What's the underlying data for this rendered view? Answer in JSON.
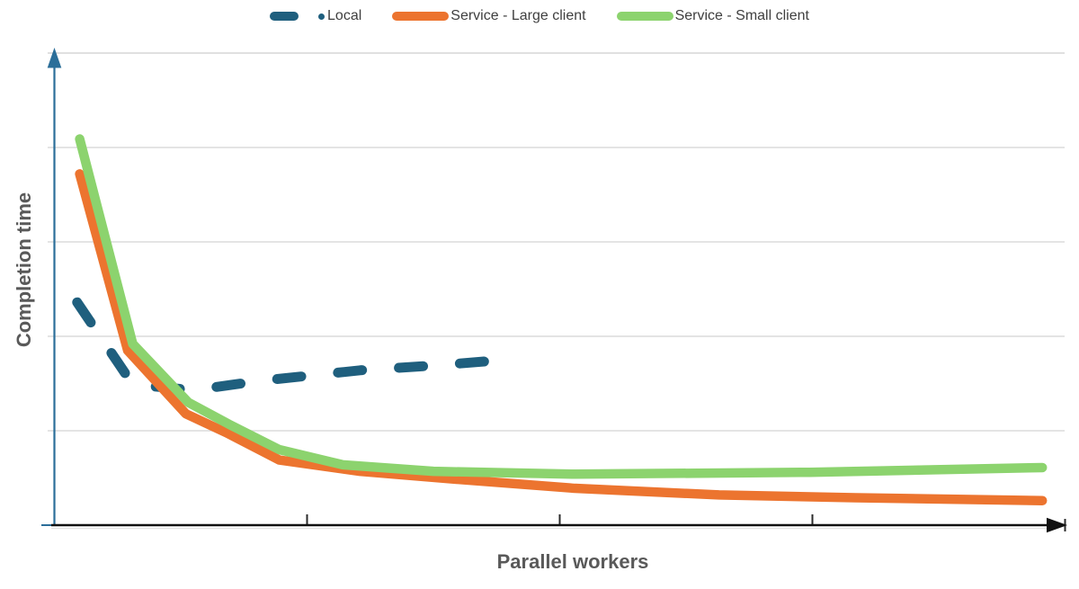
{
  "chart_data": {
    "type": "line",
    "xlabel": "Parallel workers",
    "ylabel": "Completion time",
    "xlim": [
      0,
      4
    ],
    "ylim": [
      0,
      5
    ],
    "x_tick_labels": [],
    "y_tick_labels": [],
    "gridlines": "horizontal",
    "legend_position": "top-center",
    "units": "axes have no numeric labels; values are in gridline units",
    "series": [
      {
        "name": "Local",
        "color": "#1F5F7E",
        "line_style": "dashed",
        "stroke_width": 11,
        "points": [
          [
            0.09,
            2.36
          ],
          [
            0.31,
            1.49
          ],
          [
            0.55,
            1.43
          ],
          [
            0.82,
            1.53
          ],
          [
            1.21,
            1.64
          ],
          [
            1.5,
            1.69
          ],
          [
            1.78,
            1.75
          ]
        ]
      },
      {
        "name": "Service - Large client",
        "color": "#EC742F",
        "line_style": "solid",
        "stroke_width": 10.5,
        "points": [
          [
            0.1,
            3.72
          ],
          [
            0.29,
            1.85
          ],
          [
            0.52,
            1.18
          ],
          [
            0.68,
            0.98
          ],
          [
            0.89,
            0.69
          ],
          [
            1.21,
            0.57
          ],
          [
            1.57,
            0.49
          ],
          [
            2.06,
            0.39
          ],
          [
            2.63,
            0.32
          ],
          [
            3.17,
            0.29
          ],
          [
            3.91,
            0.26
          ]
        ]
      },
      {
        "name": "Service - Small client",
        "color": "#8CD36E",
        "line_style": "solid",
        "stroke_width": 10.5,
        "points": [
          [
            0.1,
            4.09
          ],
          [
            0.31,
            1.92
          ],
          [
            0.53,
            1.3
          ],
          [
            0.69,
            1.07
          ],
          [
            0.89,
            0.8
          ],
          [
            1.14,
            0.64
          ],
          [
            1.5,
            0.57
          ],
          [
            2.06,
            0.54
          ],
          [
            2.99,
            0.56
          ],
          [
            3.91,
            0.61
          ]
        ]
      }
    ],
    "colors": {
      "y_axis": "#2B6E99",
      "x_axis": "#111111",
      "gridline": "#DCDCDC",
      "top_gridline": "#E0E0E0",
      "axis_shadow": "#E3E3E3",
      "tick": "#2B2B2B",
      "axis_label_text": "#595959",
      "legend_text": "#3F3F3F",
      "background": "#FFFFFF"
    }
  }
}
